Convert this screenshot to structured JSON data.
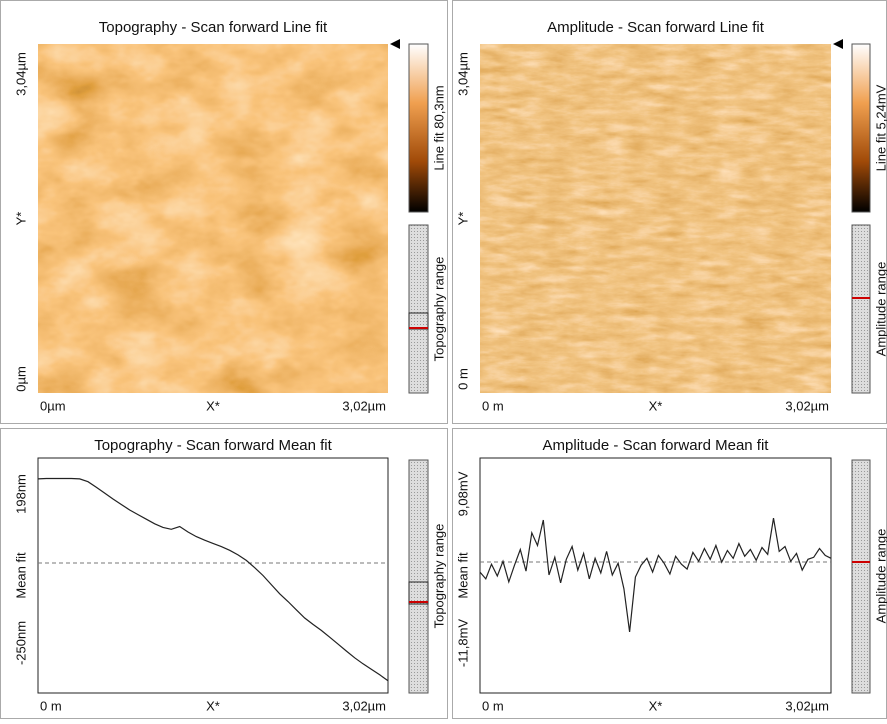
{
  "panels": [
    {
      "title": "Topography - Scan forward   Line fit",
      "y_label": "Y*",
      "y_ticks": [
        "3,04µm",
        "0µm"
      ],
      "x_label": "X*",
      "x_ticks": [
        "0µm",
        "3,02µm"
      ],
      "colorbar_label": "Line fit 80,3nm",
      "range_label": "Topography range"
    },
    {
      "title": "Amplitude - Scan forward   Line fit",
      "y_label": "Y*",
      "y_ticks": [
        "3,04µm",
        "0 m"
      ],
      "x_label": "X*",
      "x_ticks": [
        "0 m",
        "3,02µm"
      ],
      "colorbar_label": "Line fit 5,24mV",
      "range_label": "Amplitude range"
    },
    {
      "title": "Topography - Scan forward   Mean fit",
      "y_label": "Mean fit",
      "y_ticks": [
        {
          "value": 198,
          "label": "198nm"
        },
        {
          "value": -250,
          "label": "-250nm"
        }
      ],
      "x_label": "X*",
      "x_ticks": [
        "0 m",
        "3,02µm"
      ],
      "range_label": "Topography range",
      "profile": [
        196,
        197,
        197,
        197,
        197,
        196,
        190,
        178,
        165,
        152,
        140,
        128,
        118,
        108,
        98,
        90,
        86,
        92,
        80,
        70,
        62,
        55,
        48,
        40,
        30,
        18,
        2,
        -15,
        -35,
        -55,
        -72,
        -90,
        -108,
        -122,
        -135,
        -150,
        -165,
        -180,
        -195,
        -208,
        -220,
        -232,
        -245
      ]
    },
    {
      "title": "Amplitude - Scan forward   Mean fit",
      "y_label": "Mean fit",
      "y_ticks": [
        {
          "value": 9.08,
          "label": "9,08mV"
        },
        {
          "value": -11.8,
          "label": "-11,8mV"
        }
      ],
      "x_label": "X*",
      "x_ticks": [
        "0 m",
        "3,02µm"
      ],
      "range_label": "Amplitude range",
      "profile": [
        -0.5,
        -1.2,
        0.3,
        -0.9,
        0.6,
        -1.5,
        0.2,
        1.8,
        -0.4,
        3.5,
        2.2,
        4.8,
        -0.8,
        1.0,
        -1.6,
        0.8,
        2.1,
        -0.3,
        1.4,
        -1.2,
        0.9,
        -0.6,
        1.6,
        -0.8,
        0.4,
        -2.2,
        -6.6,
        -1.0,
        0.2,
        0.9,
        -0.5,
        1.2,
        0.4,
        -0.7,
        1.1,
        0.3,
        -0.2,
        1.5,
        0.6,
        1.9,
        0.8,
        2.2,
        0.5,
        1.7,
        0.9,
        2.4,
        1.1,
        1.8,
        0.7,
        2.0,
        1.3,
        5.0,
        1.6,
        2.1,
        0.6,
        1.4,
        -0.3,
        0.8,
        1.0,
        1.9,
        1.2,
        0.9
      ]
    }
  ]
}
